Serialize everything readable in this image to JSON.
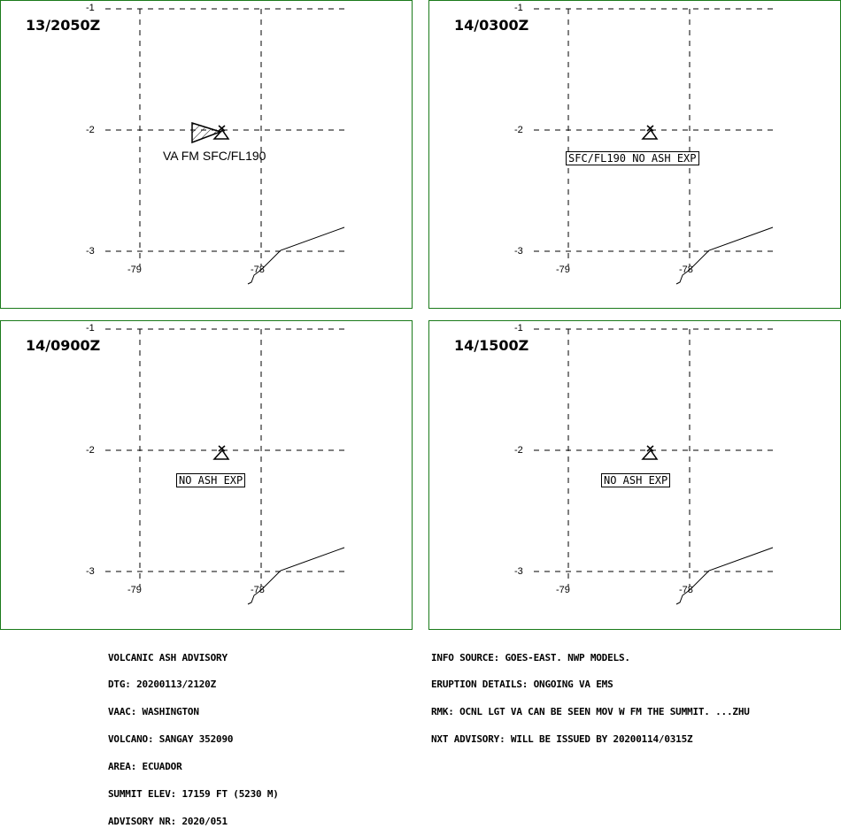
{
  "panels": [
    {
      "time": "13/2050Z",
      "lat_labels": [
        "-1",
        "-2",
        "-3"
      ],
      "lon_labels": [
        "-79",
        "-78"
      ],
      "ash_label": "VA FM SFC/FL190",
      "ash_label_boxed": false,
      "ash_polygon": true
    },
    {
      "time": "14/0300Z",
      "lat_labels": [
        "-1",
        "-2",
        "-3"
      ],
      "lon_labels": [
        "-79",
        "-78"
      ],
      "ash_label": "SFC/FL190 NO ASH EXP",
      "ash_label_boxed": true,
      "ash_polygon": false
    },
    {
      "time": "14/0900Z",
      "lat_labels": [
        "-1",
        "-2",
        "-3"
      ],
      "lon_labels": [
        "-79",
        "-78"
      ],
      "ash_label": "NO ASH EXP",
      "ash_label_boxed": true,
      "ash_polygon": false
    },
    {
      "time": "14/1500Z",
      "lat_labels": [
        "-1",
        "-2",
        "-3"
      ],
      "lon_labels": [
        "-79",
        "-78"
      ],
      "ash_label": "NO ASH EXP",
      "ash_label_boxed": true,
      "ash_polygon": false
    }
  ],
  "advisory_left": [
    "VOLCANIC ASH ADVISORY",
    "DTG: 20200113/2120Z",
    "VAAC: WASHINGTON",
    "VOLCANO: SANGAY 352090",
    "AREA: ECUADOR",
    "SUMMIT ELEV: 17159 FT (5230 M)",
    "ADVISORY NR: 2020/051"
  ],
  "advisory_right": [
    "INFO SOURCE: GOES-EAST. NWP MODELS.",
    "ERUPTION DETAILS: ONGOING VA EMS",
    "RMK: OCNL LGT VA CAN BE SEEN MOV W FM THE SUMMIT. ...ZHU",
    "NXT ADVISORY: WILL BE ISSUED BY 20200114/0315Z"
  ],
  "colors": {
    "panel_border": "#1a7a1a",
    "lines": "#000000",
    "background": "#ffffff"
  }
}
